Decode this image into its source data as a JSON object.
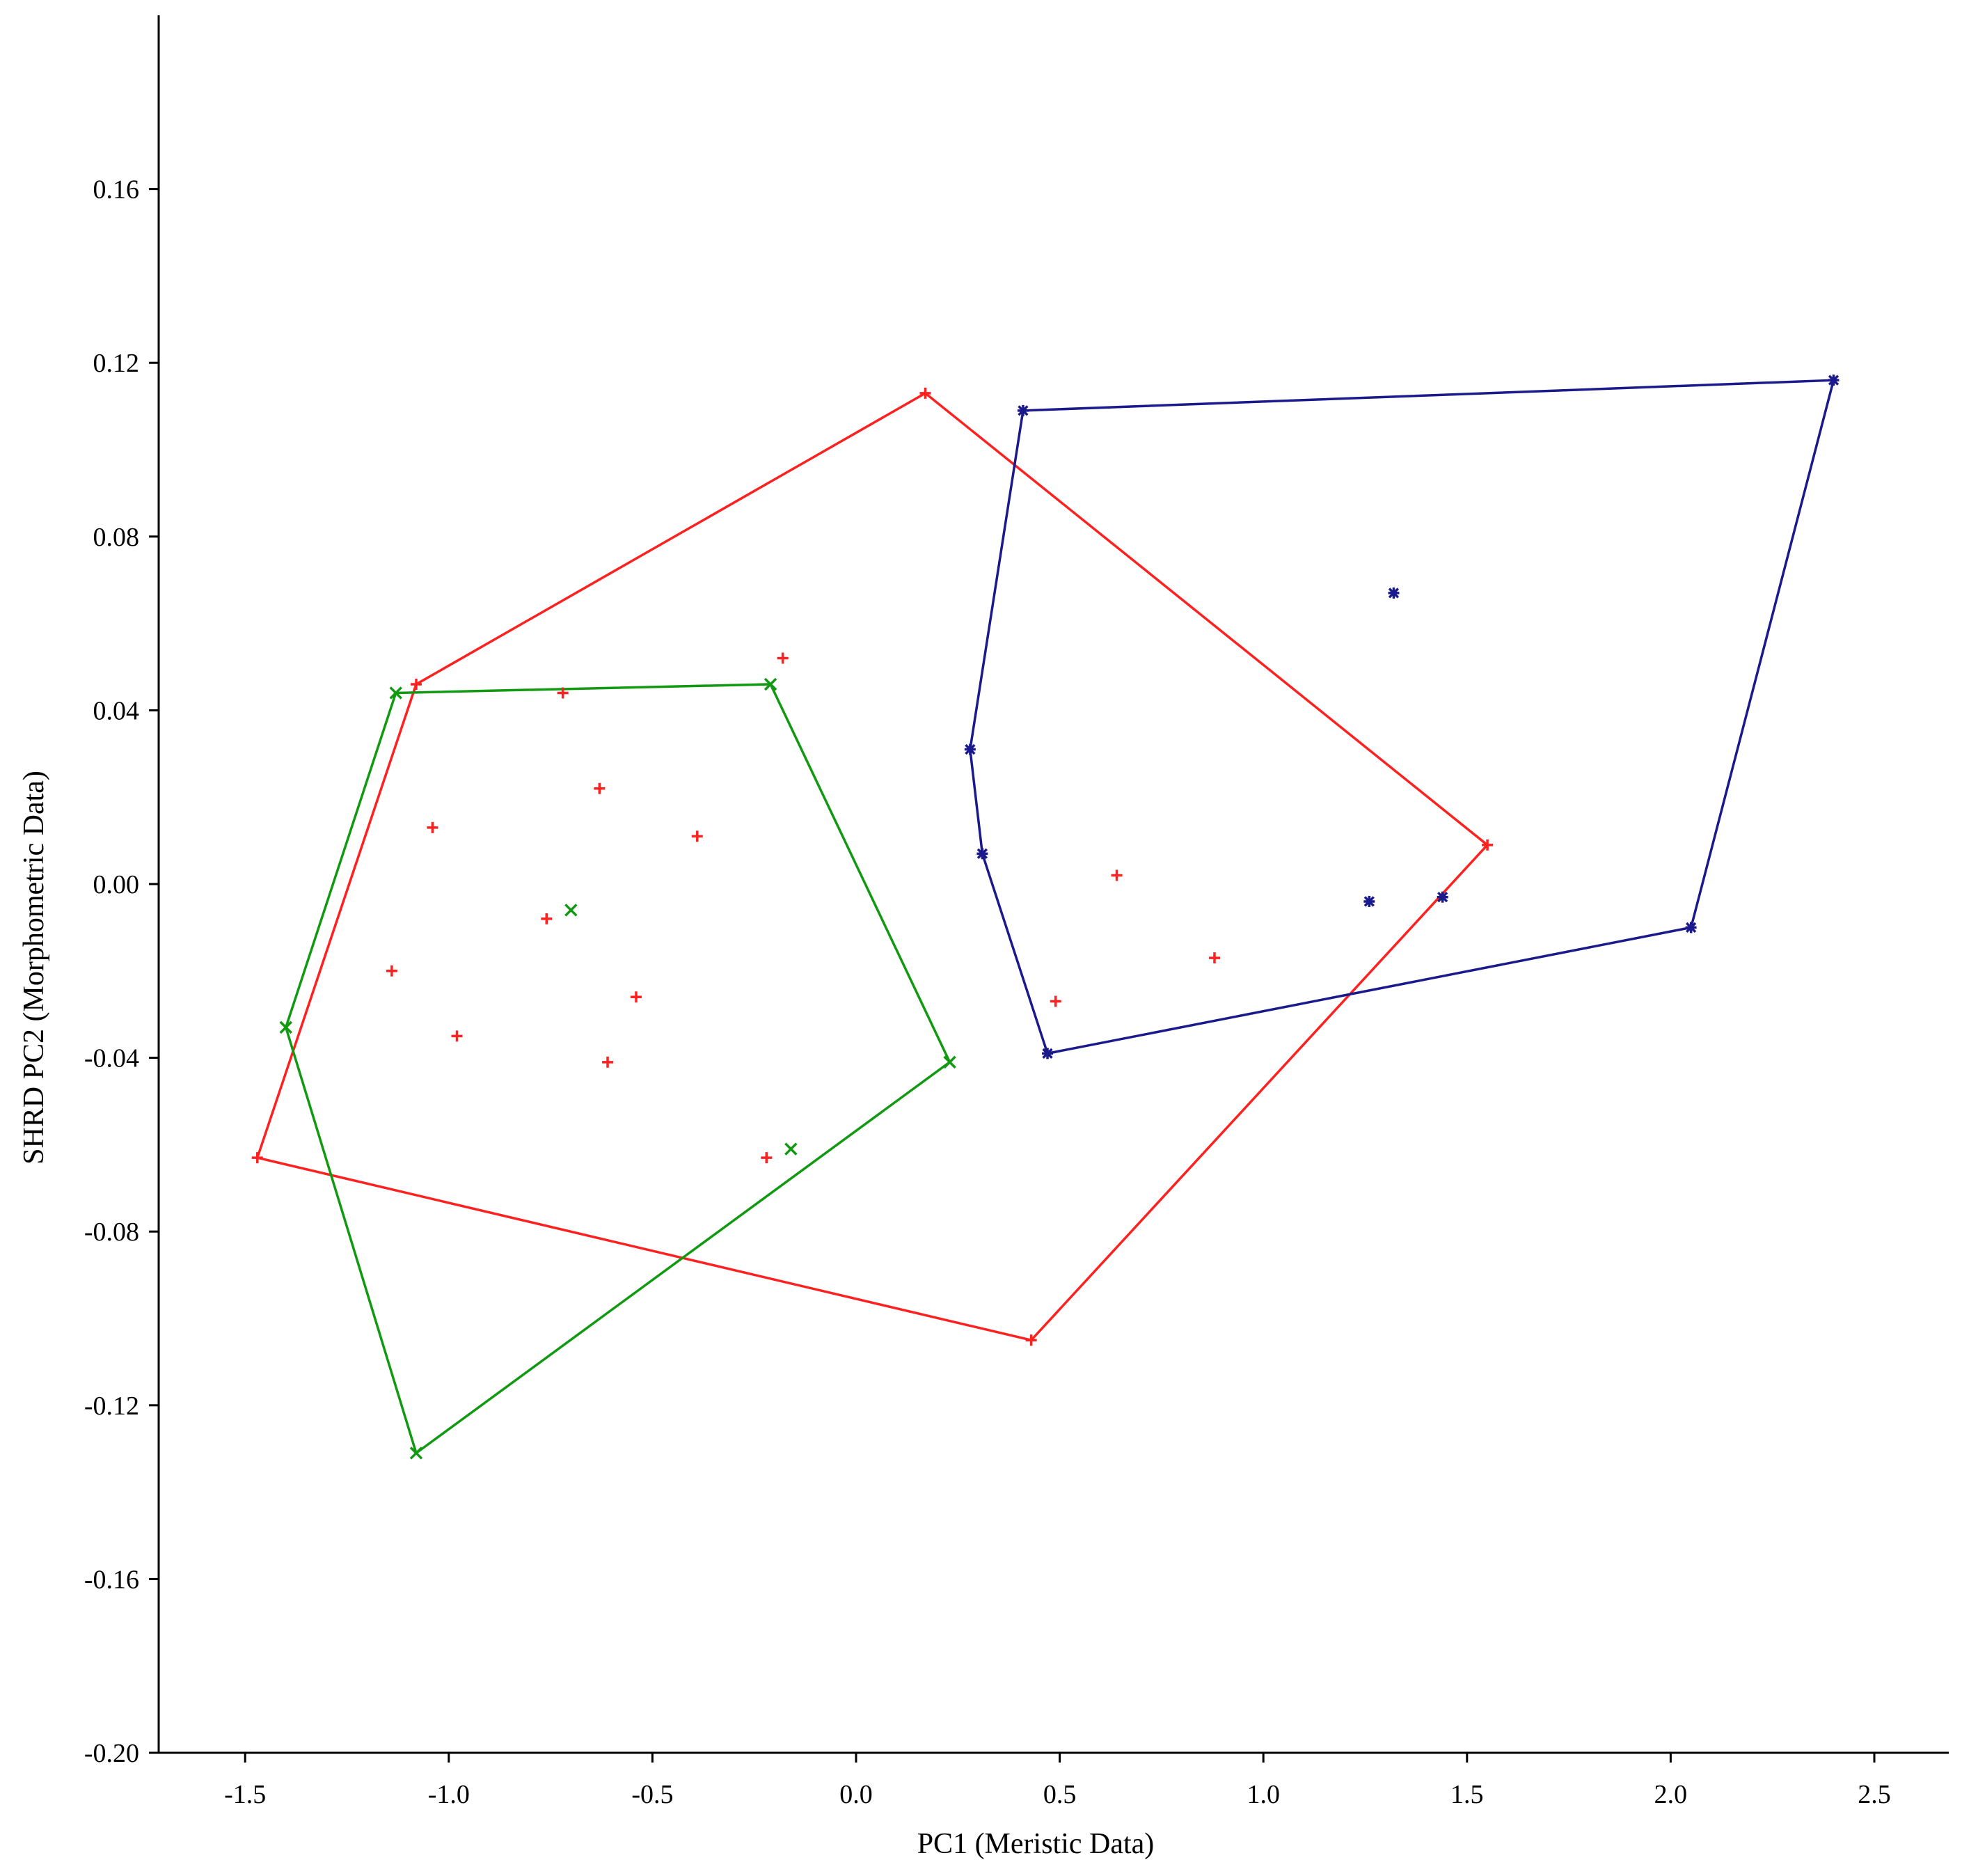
{
  "chart_data": {
    "type": "scatter",
    "xlabel": "PC1 (Meristic Data)",
    "ylabel": "SHRD PC2 (Morphometric Data)",
    "xlim": [
      -1.7,
      2.7
    ],
    "ylim": [
      -0.2,
      0.2
    ],
    "x_ticks": [
      -1.5,
      -1.0,
      -0.5,
      0.0,
      0.5,
      1.0,
      1.5,
      2.0,
      2.5
    ],
    "x_tick_labels": [
      "-1.5",
      "-1.0",
      "-0.5",
      "0.0",
      "0.5",
      "1.0",
      "1.5",
      "2.0",
      "2.5"
    ],
    "y_ticks": [
      0.16,
      0.12,
      0.08,
      0.04,
      0.0,
      -0.04,
      -0.08,
      -0.12,
      -0.16,
      -0.2
    ],
    "y_tick_labels": [
      "0.16",
      "0.12",
      "0.08",
      "0.04",
      "0.00",
      "-0.04",
      "-0.08",
      "-0.12",
      "-0.16",
      "-0.20"
    ],
    "grid": false,
    "series": [
      {
        "color": "#ff2020",
        "marker": "plus",
        "points": [
          [
            0.17,
            0.113
          ],
          [
            -1.08,
            0.046
          ],
          [
            1.55,
            0.009
          ],
          [
            0.43,
            -0.105
          ],
          [
            -1.47,
            -0.063
          ],
          [
            -0.18,
            0.052
          ],
          [
            -0.72,
            0.044
          ],
          [
            -0.63,
            0.022
          ],
          [
            -1.04,
            0.013
          ],
          [
            -0.39,
            0.011
          ],
          [
            -0.76,
            -0.008
          ],
          [
            -1.14,
            -0.02
          ],
          [
            -0.54,
            -0.026
          ],
          [
            -0.98,
            -0.035
          ],
          [
            -0.61,
            -0.041
          ],
          [
            -0.22,
            -0.063
          ],
          [
            0.64,
            0.002
          ],
          [
            0.88,
            -0.017
          ],
          [
            0.49,
            -0.027
          ]
        ],
        "hull": [
          [
            0.17,
            0.113
          ],
          [
            1.55,
            0.009
          ],
          [
            0.43,
            -0.105
          ],
          [
            -1.47,
            -0.063
          ],
          [
            -1.08,
            0.046
          ]
        ]
      },
      {
        "color": "#119911",
        "marker": "x",
        "points": [
          [
            -1.13,
            0.044
          ],
          [
            -0.21,
            0.046
          ],
          [
            0.23,
            -0.041
          ],
          [
            -1.08,
            -0.131
          ],
          [
            -1.4,
            -0.033
          ],
          [
            -0.7,
            -0.006
          ],
          [
            -0.16,
            -0.061
          ]
        ],
        "hull": [
          [
            -1.13,
            0.044
          ],
          [
            -0.21,
            0.046
          ],
          [
            0.23,
            -0.041
          ],
          [
            -1.08,
            -0.131
          ],
          [
            -1.4,
            -0.033
          ]
        ]
      },
      {
        "color": "#1a1a8c",
        "marker": "star",
        "points": [
          [
            0.41,
            0.109
          ],
          [
            2.4,
            0.116
          ],
          [
            2.05,
            -0.01
          ],
          [
            0.47,
            -0.039
          ],
          [
            0.31,
            0.007
          ],
          [
            0.28,
            0.031
          ],
          [
            1.32,
            0.067
          ],
          [
            1.26,
            -0.004
          ],
          [
            1.44,
            -0.003
          ]
        ],
        "hull": [
          [
            0.41,
            0.109
          ],
          [
            2.4,
            0.116
          ],
          [
            2.05,
            -0.01
          ],
          [
            0.47,
            -0.039
          ],
          [
            0.31,
            0.007
          ],
          [
            0.28,
            0.031
          ]
        ]
      }
    ]
  }
}
